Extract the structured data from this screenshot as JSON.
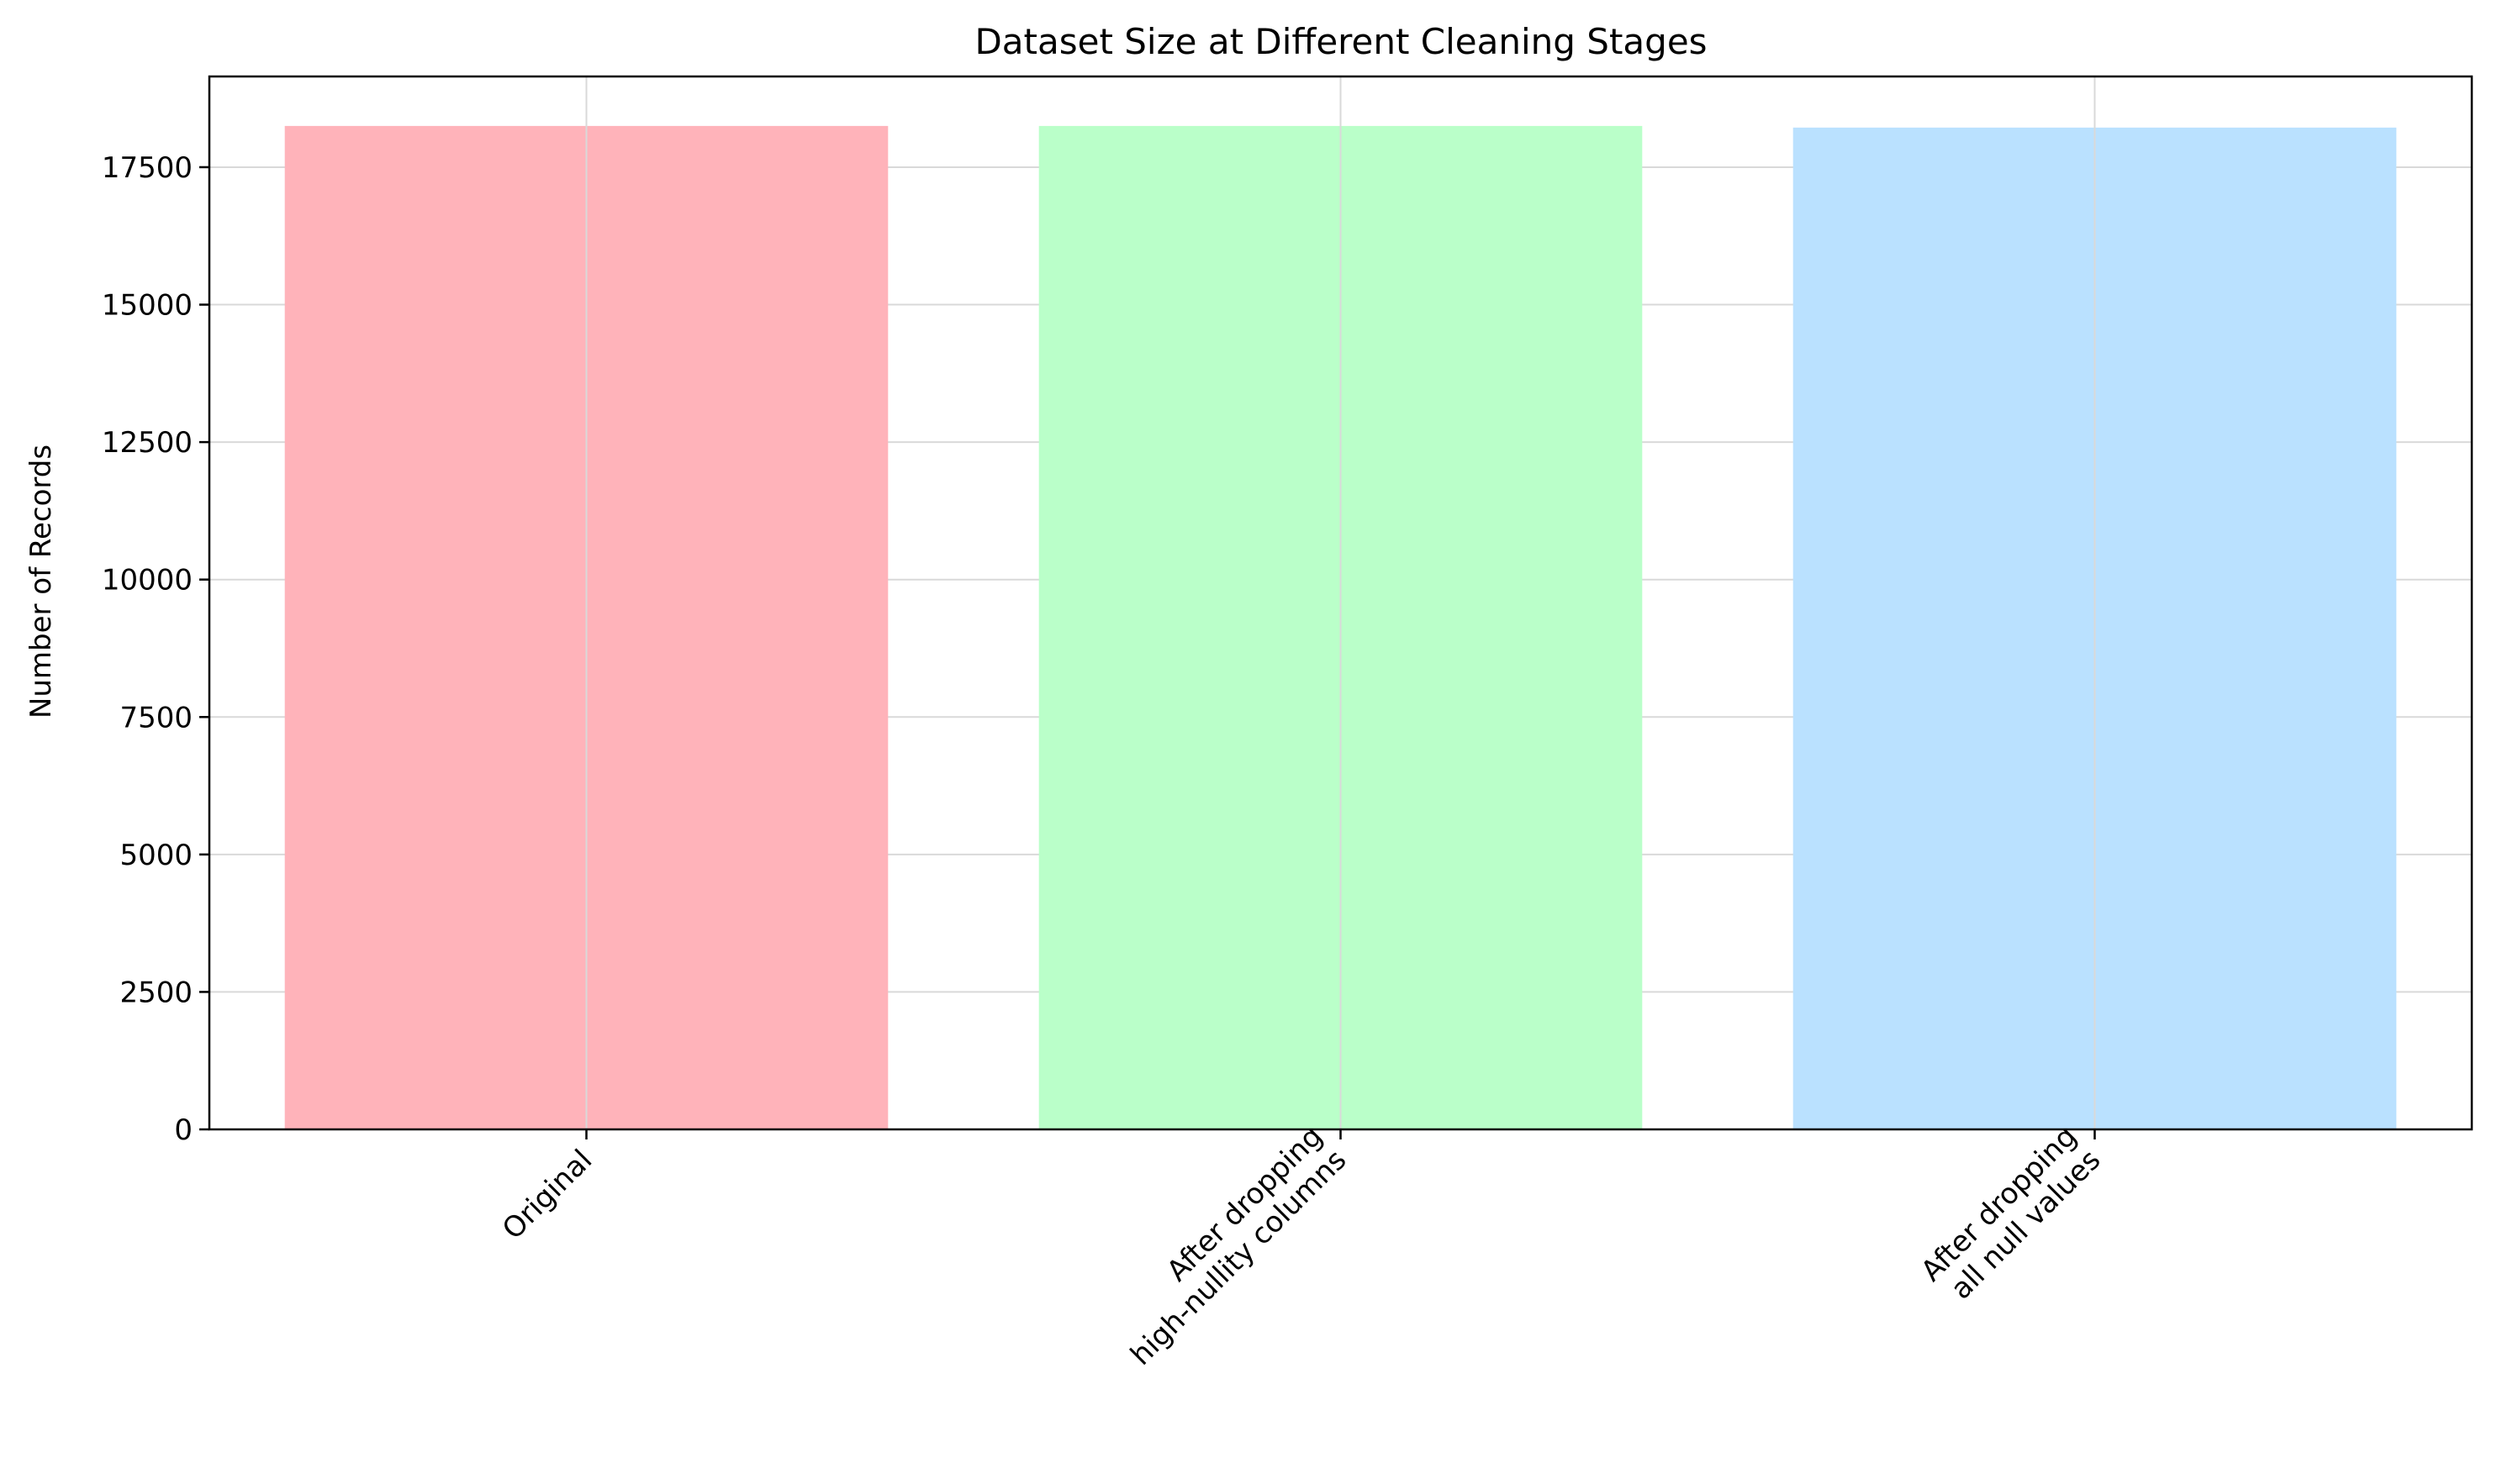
{
  "chart_data": {
    "type": "bar",
    "title": "Dataset Size at Different Cleaning Stages",
    "xlabel": "",
    "ylabel": "Number of Records",
    "categories": [
      [
        "Original"
      ],
      [
        "After dropping",
        "high-nullity columns"
      ],
      [
        "After dropping",
        "all null values"
      ]
    ],
    "values": [
      18250,
      18250,
      18220
    ],
    "colors": [
      "#ffb3ba",
      "#baffc9",
      "#bae1ff"
    ],
    "ylim": [
      0,
      19150
    ],
    "yticks": [
      0,
      2500,
      5000,
      7500,
      10000,
      12500,
      15000,
      17500
    ],
    "grid": true,
    "x_tick_rotation": -45
  }
}
